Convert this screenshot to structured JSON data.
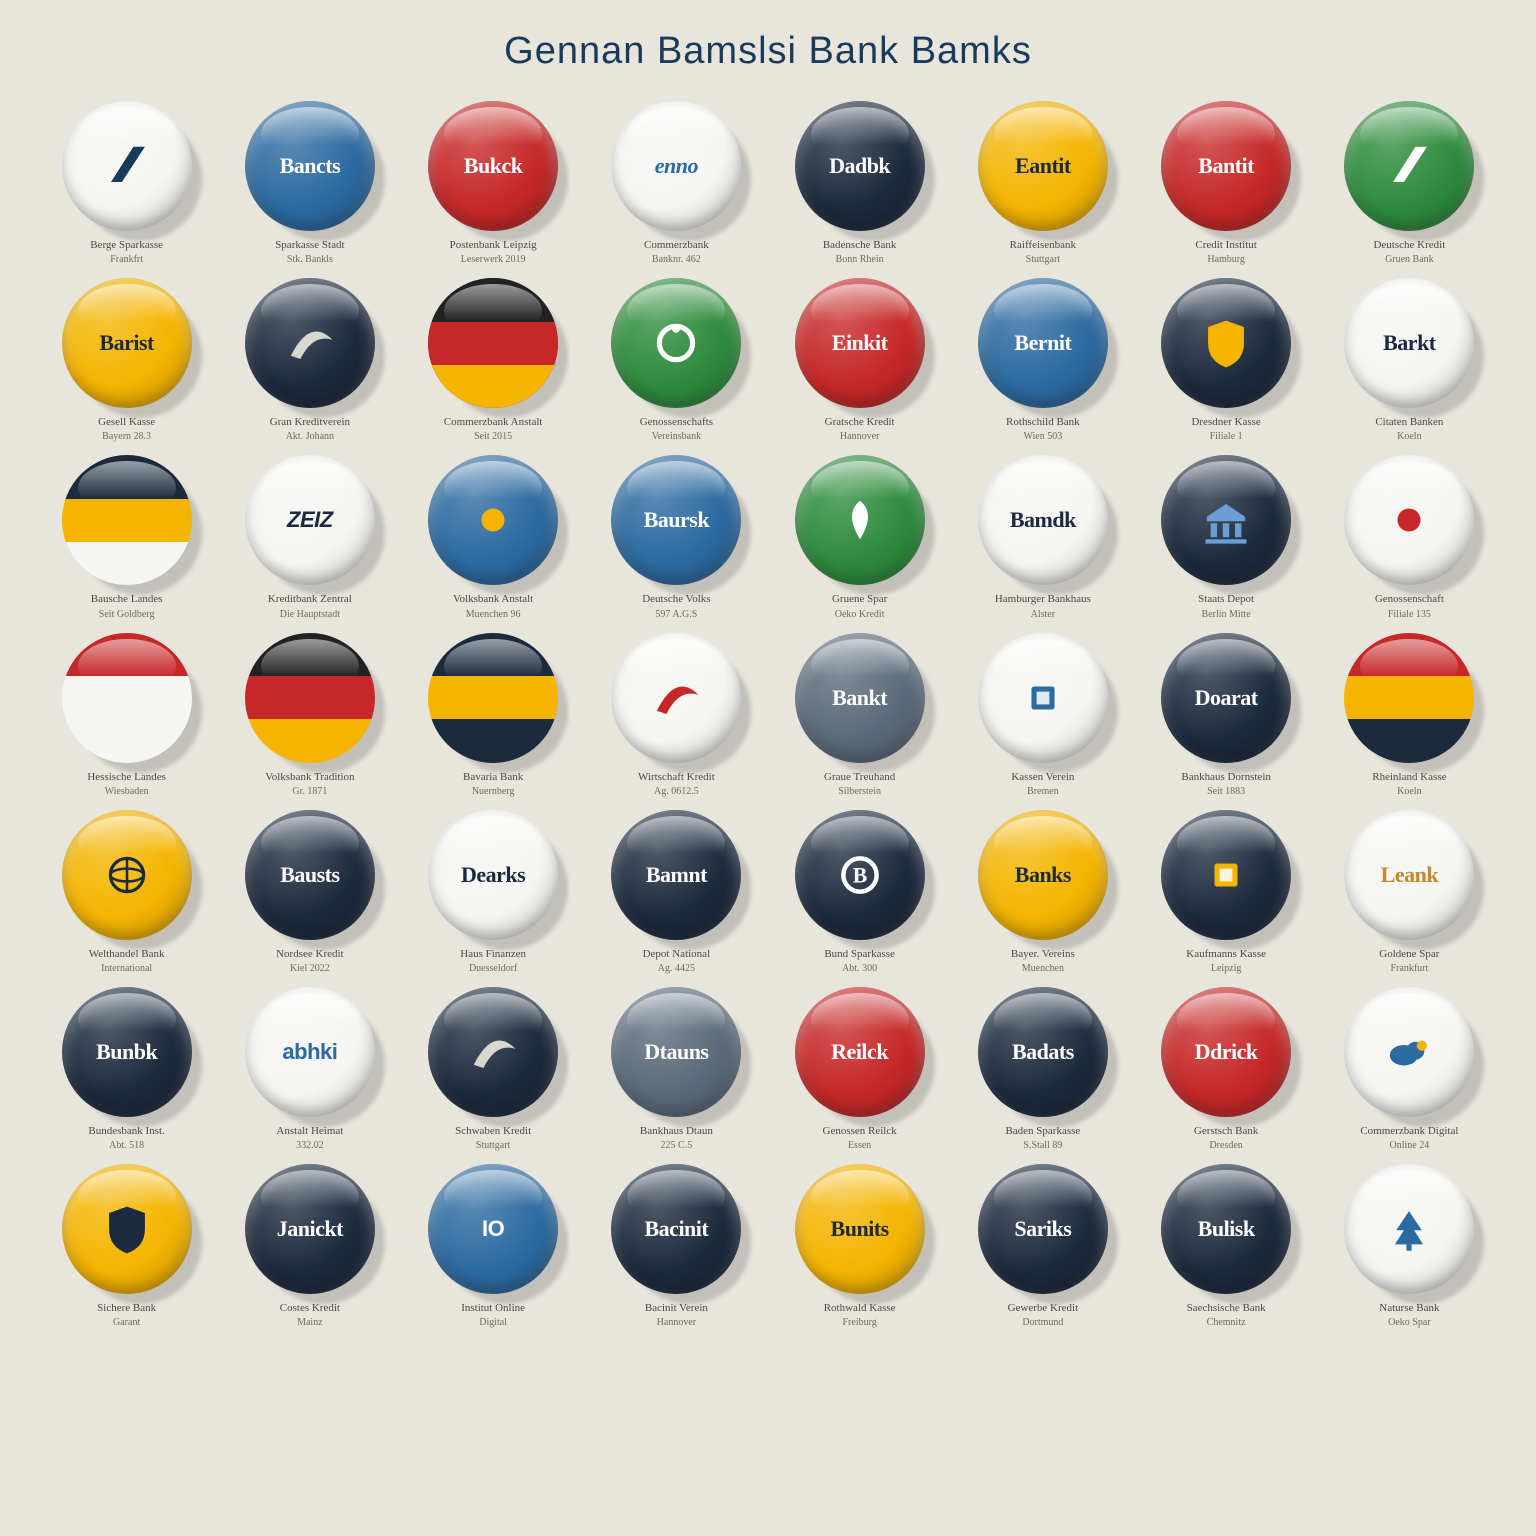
{
  "title": "Gennan Bamslsi Bank Bamks",
  "palette": {
    "white": "#f5f5f2",
    "navy": "#1c2a3e",
    "blue": "#2c6aa0",
    "red": "#c62828",
    "yellow": "#f4b400",
    "green": "#2e8b3d",
    "slate": "#5a6a7a",
    "black": "#222222"
  },
  "text_colors": {
    "on_dark": "#ffffff",
    "on_light": "#1c2a3e",
    "on_yellow": "#1c2a3e",
    "on_red": "#ffffff",
    "on_blue": "#ffffff",
    "on_green": "#ffffff"
  },
  "caption_style": {
    "line1_size": 11,
    "line2_size": 10,
    "color1": "#4a4a42",
    "color2": "#6b6b60"
  },
  "items": [
    {
      "bg": "white",
      "kind": "icon",
      "icon": "slash",
      "icon_color": "#1a3a5c",
      "cap1": "Berge Sparkasse",
      "cap2": "Frankfrt"
    },
    {
      "bg": "blue",
      "kind": "text",
      "label": "Bancts",
      "label_fg": "#ffffff",
      "cap1": "Sparkasse Stadt",
      "cap2": "Stk. Bankls"
    },
    {
      "bg": "red",
      "kind": "text",
      "label": "Bukck",
      "label_fg": "#ffffff",
      "cap1": "Postenbank Leipzig",
      "cap2": "Leserwerk 2019"
    },
    {
      "bg": "white",
      "kind": "text",
      "label": "enno",
      "label_fg": "#2c6aa0",
      "label_font": "italic",
      "cap1": "Commerzbank",
      "cap2": "Banknr. 462"
    },
    {
      "bg": "navy",
      "kind": "text",
      "label": "Dadbk",
      "label_fg": "#ffffff",
      "cap1": "Badensche Bank",
      "cap2": "Bonn Rhein"
    },
    {
      "bg": "yellow",
      "kind": "text",
      "label": "Eantit",
      "label_fg": "#1c2a3e",
      "cap1": "Raiffeisenbank",
      "cap2": "Stuttgart"
    },
    {
      "bg": "red",
      "kind": "text",
      "label": "Bantit",
      "label_fg": "#ffffff",
      "cap1": "Credit Institut",
      "cap2": "Hamburg"
    },
    {
      "bg": "green",
      "kind": "icon",
      "icon": "slash",
      "icon_color": "#ffffff",
      "cap1": "Deutsche Kredit",
      "cap2": "Gruen Bank"
    },
    {
      "bg": "yellow",
      "kind": "text",
      "label": "Barist",
      "label_fg": "#1c2a3e",
      "cap1": "Gesell Kasse",
      "cap2": "Bayern 28.3"
    },
    {
      "bg": "navy",
      "kind": "icon",
      "icon": "swoosh",
      "icon_color": "#d8d8d0",
      "cap1": "Gran Kreditverein",
      "cap2": "Akt. Johann"
    },
    {
      "bg": "navy",
      "kind": "stripes",
      "stripes": [
        "#222222",
        "#c62828",
        "#f4b400"
      ],
      "cap1": "Commerzbank Anstalt",
      "cap2": "Seit 2015"
    },
    {
      "bg": "green",
      "kind": "icon",
      "icon": "ring",
      "icon_color": "#ffffff",
      "cap1": "Genossenschafts",
      "cap2": "Vereinsbank"
    },
    {
      "bg": "red",
      "kind": "text",
      "label": "Einkit",
      "label_fg": "#ffffff",
      "cap1": "Gratsche Kredit",
      "cap2": "Hannover"
    },
    {
      "bg": "blue",
      "kind": "text",
      "label": "Bernit",
      "label_fg": "#ffffff",
      "cap1": "Rothschild Bank",
      "cap2": "Wien 503"
    },
    {
      "bg": "navy",
      "kind": "icon",
      "icon": "shield",
      "icon_color": "#f4b400",
      "cap1": "Dresdner Kasse",
      "cap2": "Filiale 1"
    },
    {
      "bg": "white",
      "kind": "text",
      "label": "Barkt",
      "label_fg": "#1c2a3e",
      "cap1": "Citaten Banken",
      "cap2": "Koeln"
    },
    {
      "bg": "white",
      "kind": "stripes",
      "stripes": [
        "#1c2a3e",
        "#f4b400",
        "#f5f5f2"
      ],
      "cap1": "Bausche Landes",
      "cap2": "Seit Goldberg"
    },
    {
      "bg": "white",
      "kind": "text",
      "label": "ZEIZ",
      "label_fg": "#1c2a3e",
      "label_font": "bolditalic",
      "cap1": "Kreditbank Zentral",
      "cap2": "Die Hauptstadt"
    },
    {
      "bg": "blue",
      "kind": "icon",
      "icon": "dot",
      "icon_color": "#f4b400",
      "cap1": "Volksbank Anstalt",
      "cap2": "Muenchen 96"
    },
    {
      "bg": "blue",
      "kind": "text",
      "label": "Baursk",
      "label_fg": "#ffffff",
      "cap1": "Deutsche Volks",
      "cap2": "597 A.G.S"
    },
    {
      "bg": "green",
      "kind": "icon",
      "icon": "leaf",
      "icon_color": "#ffffff",
      "cap1": "Gruene Spar",
      "cap2": "Oeko Kredit"
    },
    {
      "bg": "white",
      "kind": "text",
      "label": "Bamdk",
      "label_fg": "#1c2a3e",
      "cap1": "Hamburger Bankhaus",
      "cap2": "Alster"
    },
    {
      "bg": "navy",
      "kind": "icon",
      "icon": "bank",
      "icon_color": "#6a9ed4",
      "cap1": "Staats Depot",
      "cap2": "Berlin Mitte"
    },
    {
      "bg": "white",
      "kind": "icon",
      "icon": "dot",
      "icon_color": "#c62828",
      "cap1": "Genossenschaft",
      "cap2": "Filiale 135"
    },
    {
      "bg": "white",
      "kind": "stripes",
      "stripes": [
        "#c62828",
        "#f5f5f2",
        "#f5f5f2"
      ],
      "cap1": "Hessische Landes",
      "cap2": "Wiesbaden"
    },
    {
      "bg": "white",
      "kind": "stripes",
      "stripes": [
        "#222222",
        "#c62828",
        "#f4b400"
      ],
      "cap1": "Volksbank Tradition",
      "cap2": "Gr. 1871"
    },
    {
      "bg": "white",
      "kind": "stripes",
      "stripes": [
        "#1c2a3e",
        "#f4b400",
        "#1c2a3e"
      ],
      "cap1": "Bavaria Bank",
      "cap2": "Nuernberg"
    },
    {
      "bg": "white",
      "kind": "icon",
      "icon": "swoosh",
      "icon_color": "#c62828",
      "cap1": "Wirtschaft Kredit",
      "cap2": "Ag. 0612.5"
    },
    {
      "bg": "slate",
      "kind": "text",
      "label": "Bankt",
      "label_fg": "#ffffff",
      "cap1": "Graue Treuhand",
      "cap2": "Silberstein"
    },
    {
      "bg": "white",
      "kind": "icon",
      "icon": "square",
      "icon_color": "#2c6aa0",
      "cap1": "Kassen Verein",
      "cap2": "Bremen"
    },
    {
      "bg": "navy",
      "kind": "text",
      "label": "Doarat",
      "label_fg": "#ffffff",
      "cap1": "Bankhaus Dornstein",
      "cap2": "Seit 1883"
    },
    {
      "bg": "white",
      "kind": "stripes",
      "stripes": [
        "#c62828",
        "#f4b400",
        "#1c2a3e"
      ],
      "cap1": "Rheinland Kasse",
      "cap2": "Koeln"
    },
    {
      "bg": "yellow",
      "kind": "icon",
      "icon": "globe",
      "icon_color": "#1c2a3e",
      "cap1": "Welthandel Bank",
      "cap2": "International"
    },
    {
      "bg": "navy",
      "kind": "text",
      "label": "Bausts",
      "label_fg": "#ffffff",
      "cap1": "Nordsee Kredit",
      "cap2": "Kiel 2022"
    },
    {
      "bg": "white",
      "kind": "text",
      "label": "Dearks",
      "label_fg": "#1c2a3e",
      "cap1": "Haus Finanzen",
      "cap2": "Duesseldorf"
    },
    {
      "bg": "navy",
      "kind": "text",
      "label": "Bamnt",
      "label_fg": "#ffffff",
      "cap1": "Depot National",
      "cap2": "Ag. 4425"
    },
    {
      "bg": "navy",
      "kind": "icon",
      "icon": "ring-b",
      "icon_color": "#ffffff",
      "cap1": "Bund Sparkasse",
      "cap2": "Abt. 300"
    },
    {
      "bg": "yellow",
      "kind": "text",
      "label": "Banks",
      "label_fg": "#1c2a3e",
      "cap1": "Bayer. Vereins",
      "cap2": "Muenchen"
    },
    {
      "bg": "navy",
      "kind": "icon",
      "icon": "square",
      "icon_color": "#f4b400",
      "cap1": "Kaufmanns Kasse",
      "cap2": "Leipzig"
    },
    {
      "bg": "white",
      "kind": "text",
      "label": "Leank",
      "label_fg": "#c6862e",
      "cap1": "Goldene Spar",
      "cap2": "Frankfurt"
    },
    {
      "bg": "navy",
      "kind": "text",
      "label": "Bunbk",
      "label_fg": "#ffffff",
      "cap1": "Bundesbank Inst.",
      "cap2": "Abt. 518"
    },
    {
      "bg": "white",
      "kind": "text",
      "label": "abhki",
      "label_fg": "#2c6aa0",
      "label_font": "sans",
      "cap1": "Anstalt Heimat",
      "cap2": "332.02"
    },
    {
      "bg": "navy",
      "kind": "icon",
      "icon": "swoosh",
      "icon_color": "#d8d8d0",
      "cap1": "Schwaben Kredit",
      "cap2": "Stuttgart"
    },
    {
      "bg": "slate",
      "kind": "text",
      "label": "Dtauns",
      "label_fg": "#ffffff",
      "cap1": "Bankhaus Dtaun",
      "cap2": "225 C.5"
    },
    {
      "bg": "red",
      "kind": "text",
      "label": "Reilck",
      "label_fg": "#ffffff",
      "cap1": "Genossen Reilck",
      "cap2": "Essen"
    },
    {
      "bg": "navy",
      "kind": "text",
      "label": "Badats",
      "label_fg": "#ffffff",
      "cap1": "Baden Sparkasse",
      "cap2": "S.Stall 89"
    },
    {
      "bg": "red",
      "kind": "text",
      "label": "Ddrick",
      "label_fg": "#ffffff",
      "cap1": "Gerstsch Bank",
      "cap2": "Dresden"
    },
    {
      "bg": "white",
      "kind": "icon",
      "icon": "cloud",
      "icon_color": "#2c6aa0",
      "cap1": "Commerzbank Digital",
      "cap2": "Online 24"
    },
    {
      "bg": "yellow",
      "kind": "icon",
      "icon": "shield",
      "icon_color": "#1c2a3e",
      "cap1": "Sichere Bank",
      "cap2": "Garant"
    },
    {
      "bg": "navy",
      "kind": "text",
      "label": "Janickt",
      "label_fg": "#ffffff",
      "cap1": "Costes Kredit",
      "cap2": "Mainz"
    },
    {
      "bg": "blue",
      "kind": "text",
      "label": "IO",
      "label_fg": "#ffffff",
      "label_font": "sans",
      "cap1": "Institut Online",
      "cap2": "Digital"
    },
    {
      "bg": "navy",
      "kind": "text",
      "label": "Bacinit",
      "label_fg": "#ffffff",
      "cap1": "Bacinit Verein",
      "cap2": "Hannover"
    },
    {
      "bg": "yellow",
      "kind": "text",
      "label": "Bunits",
      "label_fg": "#1c2a3e",
      "cap1": "Rothwald Kasse",
      "cap2": "Freiburg"
    },
    {
      "bg": "navy",
      "kind": "text",
      "label": "Sariks",
      "label_fg": "#ffffff",
      "cap1": "Gewerbe Kredit",
      "cap2": "Dortmund"
    },
    {
      "bg": "navy",
      "kind": "text",
      "label": "Bulisk",
      "label_fg": "#ffffff",
      "cap1": "Saechsische Bank",
      "cap2": "Chemnitz"
    },
    {
      "bg": "white",
      "kind": "icon",
      "icon": "tree",
      "icon_color": "#2c6aa0",
      "cap1": "Naturse Bank",
      "cap2": "Oeko Spar"
    }
  ]
}
